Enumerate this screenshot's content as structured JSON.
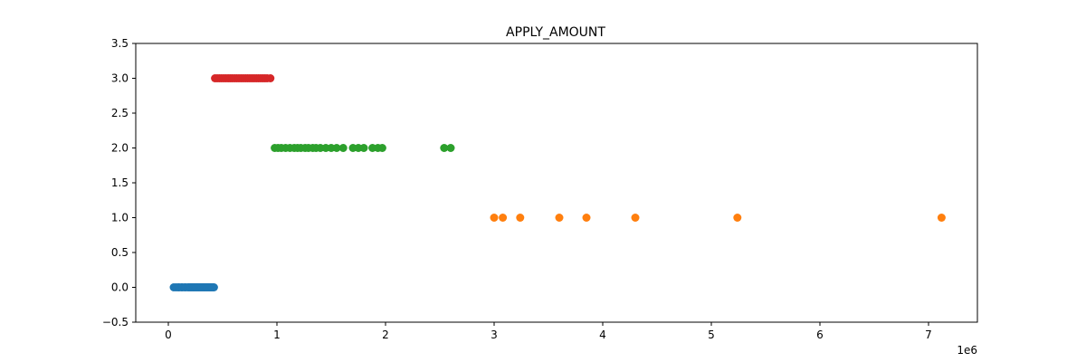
{
  "chart_data": {
    "type": "scatter",
    "title": "APPLY_AMOUNT",
    "xlabel": "",
    "ylabel": "",
    "x_offset_text": "1e6",
    "xlim": [
      -0.3,
      7.45
    ],
    "ylim": [
      -0.5,
      3.5
    ],
    "x_ticks": [
      0,
      1,
      2,
      3,
      4,
      5,
      6,
      7
    ],
    "x_tick_labels": [
      "0",
      "1",
      "2",
      "3",
      "4",
      "5",
      "6",
      "7"
    ],
    "y_ticks": [
      -0.5,
      0.0,
      0.5,
      1.0,
      1.5,
      2.0,
      2.5,
      3.0,
      3.5
    ],
    "y_tick_labels": [
      "−0.5",
      "0.0",
      "0.5",
      "1.0",
      "1.5",
      "2.0",
      "2.5",
      "3.0",
      "3.5"
    ],
    "grid": false,
    "series": [
      {
        "color": "#1f77b4",
        "y": 0,
        "x": [
          0.05,
          0.07,
          0.09,
          0.1,
          0.12,
          0.13,
          0.15,
          0.16,
          0.18,
          0.19,
          0.2,
          0.21,
          0.22,
          0.23,
          0.24,
          0.25,
          0.26,
          0.27,
          0.28,
          0.29,
          0.3,
          0.31,
          0.32,
          0.33,
          0.34,
          0.35,
          0.36,
          0.37,
          0.38,
          0.39,
          0.4,
          0.41,
          0.42
        ]
      },
      {
        "color": "#d62728",
        "y": 3,
        "x": [
          0.43,
          0.45,
          0.47,
          0.49,
          0.51,
          0.53,
          0.55,
          0.57,
          0.59,
          0.61,
          0.63,
          0.65,
          0.67,
          0.69,
          0.71,
          0.73,
          0.75,
          0.77,
          0.79,
          0.81,
          0.83,
          0.85,
          0.87,
          0.89,
          0.91,
          0.94
        ]
      },
      {
        "color": "#2ca02c",
        "y": 2,
        "x": [
          0.98,
          1.01,
          1.04,
          1.08,
          1.12,
          1.16,
          1.19,
          1.22,
          1.26,
          1.29,
          1.33,
          1.36,
          1.4,
          1.45,
          1.5,
          1.55,
          1.61,
          1.7,
          1.75,
          1.8,
          1.88,
          1.93,
          1.97,
          2.54,
          2.6
        ]
      },
      {
        "color": "#ff7f0e",
        "y": 1,
        "x": [
          3.0,
          3.08,
          3.24,
          3.6,
          3.85,
          4.3,
          5.24,
          7.12
        ]
      }
    ]
  }
}
